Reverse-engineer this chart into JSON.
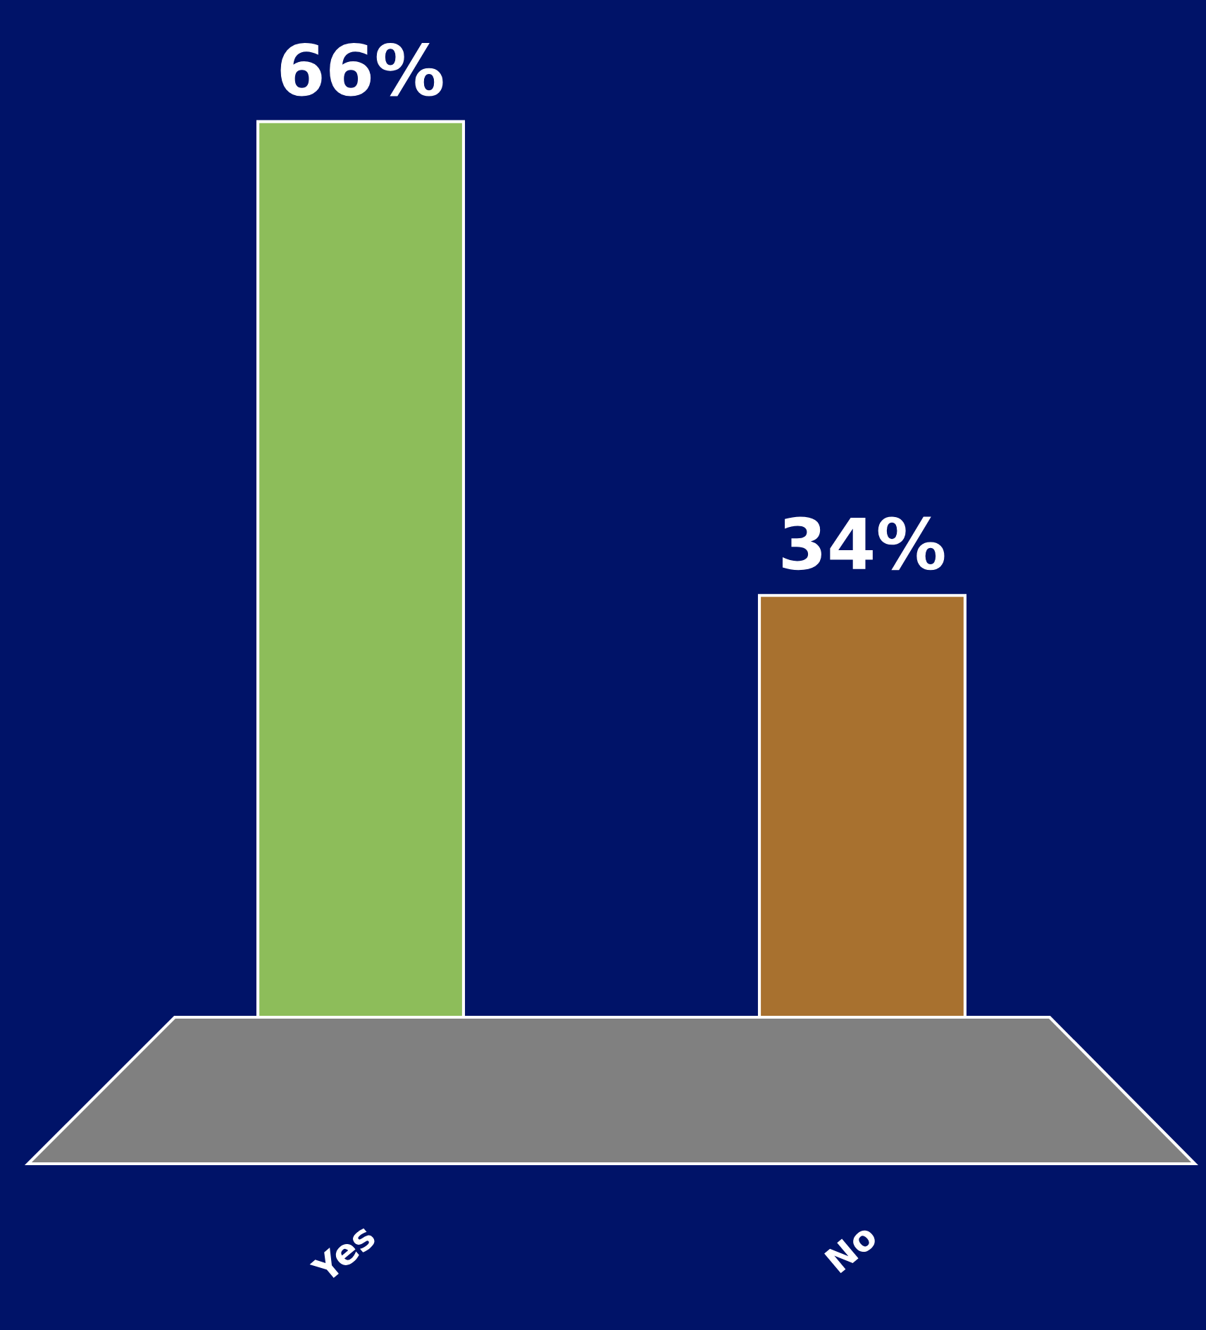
{
  "chart_data": {
    "type": "bar",
    "categories": [
      "Yes",
      "No"
    ],
    "values": [
      66,
      34
    ],
    "colors": [
      "#8dbd5a",
      "#a8712f"
    ],
    "value_labels": [
      "66%",
      "34%"
    ],
    "grid": false,
    "legend": false
  }
}
